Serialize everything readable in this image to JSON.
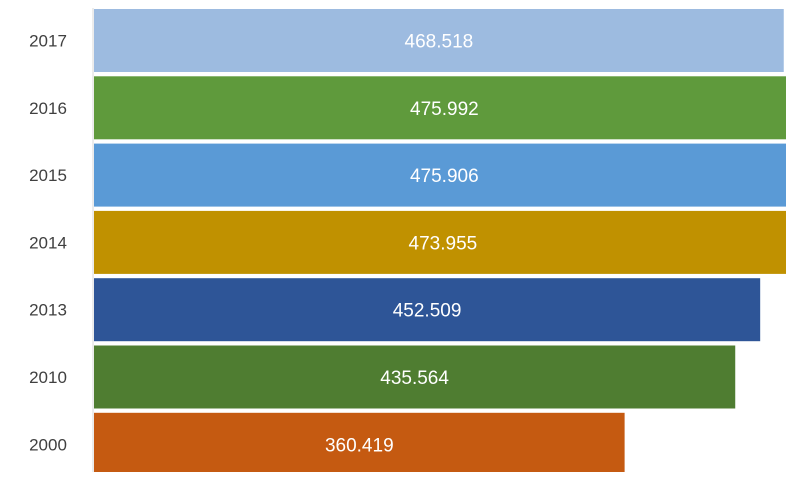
{
  "chart_data": {
    "type": "bar",
    "orientation": "horizontal",
    "categories": [
      "2017",
      "2016",
      "2015",
      "2014",
      "2013",
      "2010",
      "2000"
    ],
    "values": [
      468.518,
      475.992,
      475.906,
      473.955,
      452.509,
      435.564,
      360.419
    ],
    "value_labels": [
      "468.518",
      "475.992",
      "475.906",
      "473.955",
      "452.509",
      "435.564",
      "360.419"
    ],
    "colors": [
      "#9dbbe0",
      "#5f9a3c",
      "#5a9ad6",
      "#c09100",
      "#2e5597",
      "#4f7d31",
      "#c55a11"
    ],
    "title": "",
    "xlabel": "",
    "ylabel": "",
    "xlim": [
      0,
      470
    ],
    "grid": false,
    "legend": "none"
  }
}
